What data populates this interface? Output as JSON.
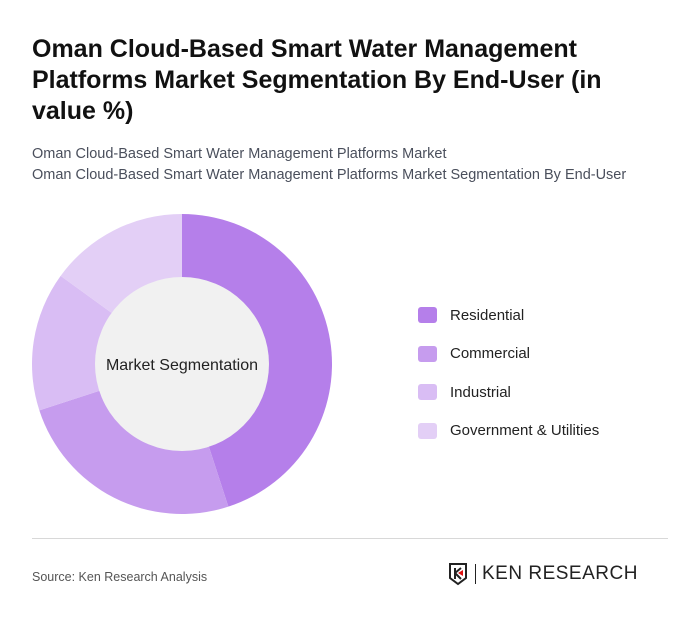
{
  "header": {
    "title": "Oman Cloud-Based Smart Water Management Platforms Market Segmentation By End-User (in value %)",
    "subtitle1": "Oman Cloud-Based Smart Water Management Platforms Market",
    "subtitle2": "Oman Cloud-Based Smart Water Management Platforms Market Segmentation By End-User"
  },
  "chart_data": {
    "type": "pie",
    "variant": "donut",
    "center_label": "Market Segmentation",
    "categories": [
      "Residential",
      "Commercial",
      "Industrial",
      "Government & Utilities"
    ],
    "values": [
      45,
      25,
      15,
      15
    ],
    "colors": [
      "#b57fea",
      "#c69cee",
      "#d9bdf4",
      "#e3cff6"
    ],
    "legend_position": "right"
  },
  "footer": {
    "source": "Source: Ken Research Analysis",
    "logo_text": "KEN RESEARCH"
  }
}
